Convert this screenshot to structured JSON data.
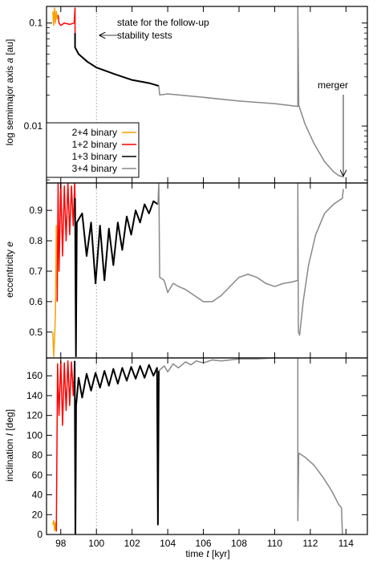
{
  "chart_data": {
    "type": "line",
    "x_axis": {
      "label_prefix": "time ",
      "label_symbol": "t",
      "label_unit": " [kyr]",
      "range": [
        97.2,
        115.2
      ],
      "ticks": [
        98,
        100,
        102,
        104,
        106,
        108,
        110,
        112,
        114
      ]
    },
    "colors": {
      "2+4 binary": "#f5a300",
      "1+2 binary": "#ff0000",
      "1+3 binary": "#000000",
      "3+4 binary": "#888888"
    },
    "legend": {
      "placement": "bottom-left of top panel",
      "entries": [
        "2+4 binary",
        "1+2 binary",
        "1+3 binary",
        "3+4 binary"
      ]
    },
    "reference_line": {
      "x": 100,
      "style": "dotted"
    },
    "panels": [
      {
        "id": "semimajor",
        "ylabel_prefix": "log semimajor axis ",
        "ylabel_symbol": "a",
        "ylabel_unit": " [au]",
        "scale": "log",
        "ylim": [
          0.0028,
          0.145
        ],
        "yticks": [
          {
            "v": 0.1,
            "label": "0.1"
          },
          {
            "v": 0.01,
            "label": "0.01"
          }
        ],
        "annotations": [
          {
            "text_line1": "state for the follow-up",
            "text_line2": "stability tests",
            "arrow_to": [
              100.2,
              0.076
            ]
          },
          {
            "text": "merger",
            "arrow_to": [
              113.85,
              0.0032
            ]
          }
        ],
        "series": [
          {
            "name": "2+4 binary",
            "points": [
              [
                97.55,
                0.13
              ],
              [
                97.6,
                0.095
              ],
              [
                97.65,
                0.14
              ],
              [
                97.7,
                0.1
              ],
              [
                97.75,
                0.13
              ],
              [
                97.8,
                0.11
              ],
              [
                97.85,
                0.12
              ]
            ]
          },
          {
            "name": "1+2 binary",
            "points": [
              [
                97.85,
                0.12
              ],
              [
                97.9,
                0.1
              ],
              [
                98.0,
                0.095
              ],
              [
                98.2,
                0.1
              ],
              [
                98.5,
                0.097
              ],
              [
                98.75,
                0.1
              ],
              [
                98.8,
                0.14
              ],
              [
                98.8,
                0.08
              ]
            ]
          },
          {
            "name": "1+3 binary",
            "points": [
              [
                98.8,
                0.08
              ],
              [
                98.8,
                0.058
              ],
              [
                99.0,
                0.05
              ],
              [
                99.5,
                0.042
              ],
              [
                100.0,
                0.037
              ],
              [
                101.0,
                0.032
              ],
              [
                102.0,
                0.028
              ],
              [
                103.0,
                0.026
              ],
              [
                103.5,
                0.0245
              ]
            ]
          },
          {
            "name": "3+4 binary",
            "points": [
              [
                103.5,
                0.0245
              ],
              [
                103.55,
                0.02
              ],
              [
                104.0,
                0.0205
              ],
              [
                106.0,
                0.019
              ],
              [
                108.0,
                0.0175
              ],
              [
                110.0,
                0.0165
              ],
              [
                111.3,
                0.0155
              ],
              [
                111.3,
                0.145
              ],
              [
                111.35,
                0.016
              ],
              [
                111.7,
                0.0105
              ],
              [
                112.2,
                0.0068
              ],
              [
                112.8,
                0.0045
              ],
              [
                113.3,
                0.0036
              ],
              [
                113.6,
                0.0033
              ],
              [
                113.9,
                0.0032
              ]
            ]
          }
        ]
      },
      {
        "id": "eccentricity",
        "ylabel_prefix": "eccentricity ",
        "ylabel_symbol": "e",
        "ylabel_unit": "",
        "scale": "linear",
        "ylim": [
          0.415,
          0.99
        ],
        "yticks": [
          {
            "v": 0.5,
            "label": "0.5"
          },
          {
            "v": 0.6,
            "label": "0.6"
          },
          {
            "v": 0.7,
            "label": "0.7"
          },
          {
            "v": 0.8,
            "label": "0.8"
          },
          {
            "v": 0.9,
            "label": "0.9"
          }
        ],
        "series": [
          {
            "name": "2+4 binary",
            "points": [
              [
                97.55,
                0.5
              ],
              [
                97.6,
                0.42
              ],
              [
                97.65,
                0.48
              ],
              [
                97.7,
                0.56
              ],
              [
                97.75,
                0.85
              ],
              [
                97.8,
                0.6
              ]
            ]
          },
          {
            "name": "1+2 binary",
            "points": [
              [
                97.8,
                0.6
              ],
              [
                97.85,
                0.99
              ],
              [
                97.9,
                0.7
              ],
              [
                98.0,
                0.99
              ],
              [
                98.1,
                0.75
              ],
              [
                98.2,
                0.98
              ],
              [
                98.3,
                0.8
              ],
              [
                98.4,
                0.99
              ],
              [
                98.5,
                0.82
              ],
              [
                98.6,
                0.98
              ],
              [
                98.7,
                0.85
              ],
              [
                98.78,
                0.99
              ],
              [
                98.8,
                0.94
              ]
            ]
          },
          {
            "name": "1+3 binary",
            "points": [
              [
                98.8,
                0.94
              ],
              [
                98.85,
                0.42
              ],
              [
                98.9,
                0.86
              ],
              [
                99.2,
                0.89
              ],
              [
                99.45,
                0.75
              ],
              [
                99.7,
                0.86
              ],
              [
                99.95,
                0.66
              ],
              [
                100.2,
                0.85
              ],
              [
                100.45,
                0.67
              ],
              [
                100.7,
                0.84
              ],
              [
                100.95,
                0.72
              ],
              [
                101.2,
                0.86
              ],
              [
                101.45,
                0.77
              ],
              [
                101.7,
                0.88
              ],
              [
                101.95,
                0.82
              ],
              [
                102.2,
                0.9
              ],
              [
                102.45,
                0.86
              ],
              [
                102.7,
                0.92
              ],
              [
                102.95,
                0.89
              ],
              [
                103.2,
                0.93
              ],
              [
                103.45,
                0.92
              ]
            ]
          },
          {
            "name": "3+4 binary",
            "points": [
              [
                103.45,
                0.92
              ],
              [
                103.5,
                0.99
              ],
              [
                103.55,
                0.68
              ],
              [
                103.8,
                0.67
              ],
              [
                104.0,
                0.63
              ],
              [
                104.3,
                0.66
              ],
              [
                104.6,
                0.65
              ],
              [
                105.0,
                0.64
              ],
              [
                105.5,
                0.62
              ],
              [
                106.0,
                0.6
              ],
              [
                106.5,
                0.6
              ],
              [
                107.0,
                0.62
              ],
              [
                107.5,
                0.65
              ],
              [
                108.0,
                0.68
              ],
              [
                108.5,
                0.69
              ],
              [
                109.0,
                0.68
              ],
              [
                109.5,
                0.66
              ],
              [
                110.0,
                0.65
              ],
              [
                110.5,
                0.66
              ],
              [
                111.0,
                0.665
              ],
              [
                111.3,
                0.67
              ],
              [
                111.3,
                0.99
              ],
              [
                111.33,
                0.5
              ],
              [
                111.4,
                0.49
              ],
              [
                111.6,
                0.6
              ],
              [
                111.9,
                0.72
              ],
              [
                112.3,
                0.82
              ],
              [
                112.8,
                0.89
              ],
              [
                113.3,
                0.92
              ],
              [
                113.8,
                0.94
              ],
              [
                113.85,
                0.97
              ]
            ]
          }
        ]
      },
      {
        "id": "inclination",
        "ylabel_prefix": "inclination ",
        "ylabel_symbol": "I",
        "ylabel_unit": " [deg]",
        "scale": "linear",
        "ylim": [
          0,
          178
        ],
        "yticks": [
          {
            "v": 0,
            "label": "0"
          },
          {
            "v": 20,
            "label": "20"
          },
          {
            "v": 40,
            "label": "40"
          },
          {
            "v": 60,
            "label": "60"
          },
          {
            "v": 80,
            "label": "80"
          },
          {
            "v": 100,
            "label": "100"
          },
          {
            "v": 120,
            "label": "120"
          },
          {
            "v": 140,
            "label": "140"
          },
          {
            "v": 160,
            "label": "160"
          }
        ],
        "series": [
          {
            "name": "2+4 binary",
            "points": [
              [
                97.55,
                10
              ],
              [
                97.6,
                14
              ],
              [
                97.65,
                4
              ],
              [
                97.7,
                12
              ],
              [
                97.75,
                3
              ]
            ]
          },
          {
            "name": "1+2 binary",
            "points": [
              [
                97.75,
                3
              ],
              [
                97.78,
                75
              ],
              [
                97.82,
                172
              ],
              [
                97.9,
                120
              ],
              [
                98.0,
                175
              ],
              [
                98.1,
                110
              ],
              [
                98.2,
                173
              ],
              [
                98.3,
                125
              ],
              [
                98.4,
                175
              ],
              [
                98.5,
                130
              ],
              [
                98.6,
                174
              ],
              [
                98.7,
                140
              ],
              [
                98.78,
                175
              ]
            ]
          },
          {
            "name": "1+3 binary",
            "points": [
              [
                98.78,
                175
              ],
              [
                98.82,
                0
              ],
              [
                98.86,
                130
              ],
              [
                99.0,
                158
              ],
              [
                99.2,
                138
              ],
              [
                99.45,
                162
              ],
              [
                99.7,
                145
              ],
              [
                99.95,
                163
              ],
              [
                100.2,
                148
              ],
              [
                100.45,
                165
              ],
              [
                100.7,
                150
              ],
              [
                100.95,
                167
              ],
              [
                101.2,
                152
              ],
              [
                101.45,
                168
              ],
              [
                101.7,
                155
              ],
              [
                101.95,
                169
              ],
              [
                102.2,
                157
              ],
              [
                102.45,
                170
              ],
              [
                102.7,
                158
              ],
              [
                102.95,
                171
              ],
              [
                103.2,
                160
              ],
              [
                103.4,
                168
              ],
              [
                103.45,
                10
              ],
              [
                103.5,
                165
              ]
            ]
          },
          {
            "name": "3+4 binary",
            "points": [
              [
                103.5,
                165
              ],
              [
                103.8,
                170
              ],
              [
                104.0,
                164
              ],
              [
                104.3,
                172
              ],
              [
                104.6,
                168
              ],
              [
                105.0,
                174
              ],
              [
                105.3,
                171
              ],
              [
                105.6,
                175
              ],
              [
                106.0,
                173
              ],
              [
                106.5,
                176
              ],
              [
                107.0,
                175
              ],
              [
                108.0,
                177
              ],
              [
                109.0,
                177
              ],
              [
                110.0,
                178
              ],
              [
                111.3,
                178
              ],
              [
                111.3,
                14
              ],
              [
                111.35,
                82
              ],
              [
                111.7,
                78
              ],
              [
                112.2,
                70
              ],
              [
                112.7,
                58
              ],
              [
                113.2,
                44
              ],
              [
                113.6,
                30
              ],
              [
                113.75,
                27
              ],
              [
                113.8,
                0
              ]
            ]
          }
        ]
      }
    ]
  }
}
